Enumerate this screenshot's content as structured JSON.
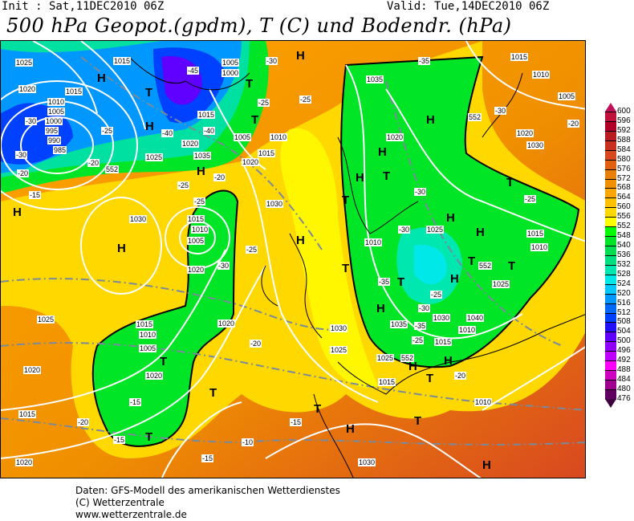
{
  "header": {
    "init": "Init : Sat,11DEC2010 06Z",
    "valid": "Valid: Tue,14DEC2010 06Z",
    "title": "500 hPa Geopot.(gpdm), T (C) und Bodendr. (hPa)"
  },
  "map": {
    "colors": {
      "base": "#f09000",
      "yellow": "#ffe000",
      "green": "#00e626",
      "cyan": "#00e8e8",
      "blue": "#0068ff",
      "purple": "#6000ff",
      "orange_red": "#e06010",
      "contour": "#ffffff",
      "isotherm": "#7a8a9a"
    },
    "pressure_labels": [
      "1025",
      "1020",
      "1015",
      "1010",
      "1005",
      "1000",
      "995",
      "990",
      "985",
      "1015",
      "1005",
      "1000",
      "1015",
      "1020",
      "1035",
      "1025",
      "1005",
      "1010",
      "1015",
      "1020",
      "1030",
      "1015",
      "1010",
      "1005",
      "1020",
      "1030",
      "1020",
      "1025",
      "1030",
      "1035",
      "1015",
      "1010",
      "1005",
      "1025",
      "1020",
      "1015",
      "1020",
      "1030",
      "1025",
      "1010",
      "1035",
      "1040",
      "1030",
      "1025",
      "1020",
      "1015",
      "1010",
      "1005",
      "1020",
      "1030",
      "1015",
      "1010",
      "1025",
      "1020",
      "1015",
      "1010",
      "1010",
      "1015"
    ],
    "temperature_labels": [
      "-30",
      "-25",
      "-20",
      "-15",
      "-40",
      "-45",
      "-30",
      "-25",
      "-40",
      "-25",
      "-20",
      "-25",
      "-30",
      "-25",
      "-20",
      "-15",
      "-30",
      "-35",
      "-25",
      "-30",
      "-35",
      "-25",
      "-20",
      "-30",
      "-35",
      "-30",
      "-25",
      "-20",
      "-15",
      "-15",
      "-20",
      "-15",
      "-10",
      "-20",
      "-25",
      "-30"
    ],
    "height_labels": [
      "552",
      "552",
      "552",
      "552"
    ],
    "pressure_centers": [
      "H",
      "H",
      "H",
      "H",
      "H",
      "H",
      "H",
      "H",
      "H",
      "H",
      "H",
      "H",
      "H",
      "H",
      "H",
      "H",
      "H",
      "H"
    ],
    "thermal_centers": [
      "T",
      "T",
      "T",
      "T",
      "T",
      "T",
      "T",
      "T",
      "T",
      "T",
      "T",
      "T",
      "T",
      "T",
      "T",
      "T"
    ]
  },
  "legend": {
    "labels": [
      "600",
      "596",
      "592",
      "588",
      "584",
      "580",
      "576",
      "572",
      "568",
      "564",
      "560",
      "556",
      "552",
      "548",
      "540",
      "536",
      "532",
      "528",
      "524",
      "520",
      "516",
      "512",
      "508",
      "504",
      "500",
      "496",
      "492",
      "488",
      "484",
      "480",
      "476"
    ],
    "colors": [
      "#c0103c",
      "#b00028",
      "#b81c20",
      "#c83020",
      "#d84820",
      "#e06010",
      "#e88008",
      "#f09000",
      "#ffa500",
      "#ffc000",
      "#ffd800",
      "#ffff00",
      "#00ff00",
      "#00e626",
      "#00dd50",
      "#00e080",
      "#00e8b0",
      "#00e8e8",
      "#00c8ff",
      "#0098ff",
      "#0068ff",
      "#0040ff",
      "#2010ff",
      "#6000ff",
      "#9000ff",
      "#c000ff",
      "#ff00ff",
      "#d000c0",
      "#a00090",
      "#600060"
    ],
    "top_arrow_color": "#c0105a",
    "bottom_arrow_color": "#400040"
  },
  "footer": {
    "line1": "Daten: GFS-Modell des amerikanischen Wetterdienstes",
    "line2": "(C) Wetterzentrale",
    "line3": "www.wetterzentrale.de"
  }
}
